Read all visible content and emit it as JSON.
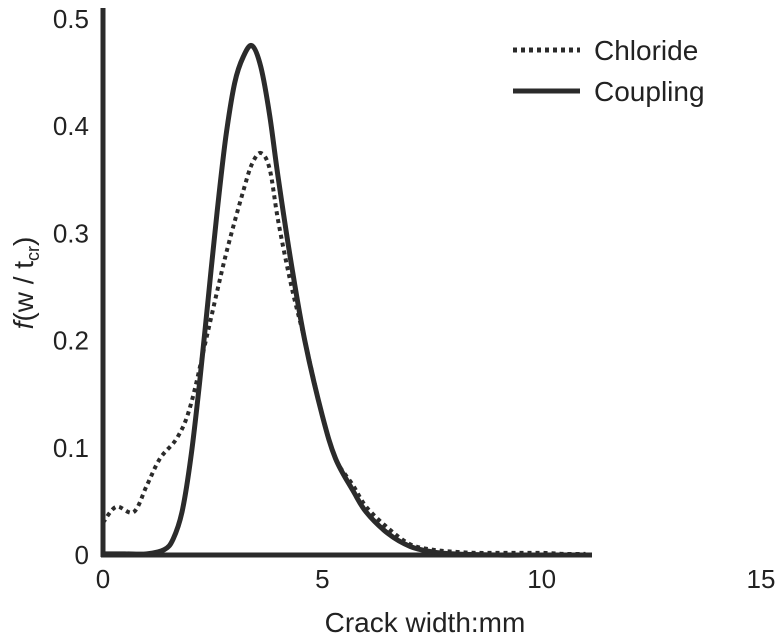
{
  "chart_data": {
    "type": "line",
    "xlabel": "Crack width:mm",
    "ylabel": "f(w / t_cr)",
    "ylabel_parts": {
      "italic": "f",
      "main": "(w / t",
      "sub": "cr",
      "close": ")"
    },
    "xlim": [
      0,
      15
    ],
    "ylim": [
      0,
      0.5
    ],
    "xticks": [
      "0",
      "5",
      "10",
      "15"
    ],
    "yticks": [
      "0",
      "0.1",
      "0.2",
      "0.3",
      "0.4",
      "0.5"
    ],
    "grid": false,
    "legend_position": "top-right",
    "series": [
      {
        "name": "Chloride",
        "style": "dotted",
        "color": "#2b2b2b",
        "x": [
          0,
          0.3,
          0.7,
          1.0,
          1.3,
          1.7,
          2.0,
          2.4,
          2.8,
          3.2,
          3.4,
          3.6,
          3.8,
          4.0,
          4.3,
          4.6,
          5.0,
          5.3,
          5.7,
          6.0,
          6.5,
          7.0,
          7.5,
          8.0,
          8.5,
          9.0,
          9.5,
          10.0,
          10.5,
          11.0
        ],
        "y": [
          0.03,
          0.045,
          0.04,
          0.065,
          0.09,
          0.11,
          0.14,
          0.21,
          0.28,
          0.34,
          0.365,
          0.375,
          0.36,
          0.31,
          0.25,
          0.2,
          0.13,
          0.09,
          0.065,
          0.045,
          0.025,
          0.01,
          0.005,
          0.003,
          0.002,
          0.002,
          0.002,
          0.002,
          0.001,
          0.001
        ]
      },
      {
        "name": "Coupling",
        "style": "solid",
        "color": "#2b2b2b",
        "x": [
          0,
          0.5,
          1.0,
          1.4,
          1.6,
          1.8,
          2.0,
          2.2,
          2.4,
          2.6,
          2.8,
          3.0,
          3.2,
          3.4,
          3.6,
          3.8,
          4.0,
          4.3,
          4.6,
          5.0,
          5.3,
          5.7,
          6.0,
          6.5,
          7.0,
          7.5,
          8.0,
          9.0,
          10.0,
          11.0
        ],
        "y": [
          0.001,
          0.001,
          0.001,
          0.005,
          0.015,
          0.04,
          0.09,
          0.16,
          0.24,
          0.32,
          0.39,
          0.44,
          0.465,
          0.475,
          0.455,
          0.41,
          0.35,
          0.27,
          0.2,
          0.13,
          0.09,
          0.06,
          0.04,
          0.02,
          0.008,
          0.003,
          0.001,
          0.0,
          0.0,
          0.0
        ]
      }
    ]
  }
}
